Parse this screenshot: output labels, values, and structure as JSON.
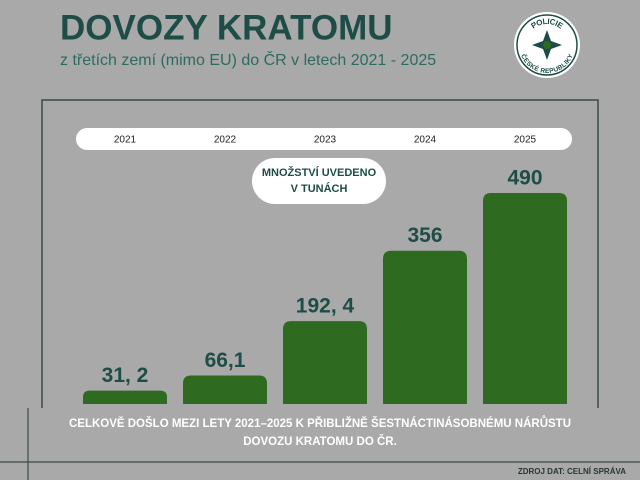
{
  "chart_data": {
    "type": "bar",
    "title": "DOVOZY KRATOMU",
    "subtitle": "z třetích zemí (mimo EU) do ČR v letech 2021 - 2025",
    "logo_text": [
      "POLICIE",
      "ČESKÉ REPUBLIKY"
    ],
    "annotation": [
      "MNOŽSTVÍ UVEDENO",
      "V TUNÁCH"
    ],
    "categories": [
      "2021",
      "2022",
      "2023",
      "2024",
      "2025"
    ],
    "values": [
      31.2,
      66.1,
      192.4,
      356,
      490
    ],
    "value_labels": [
      "31, 2",
      "66,1",
      "192, 4",
      "356",
      "490"
    ],
    "color": "#2e6a1f",
    "note": [
      "CELKOVĚ DOŠLO MEZI LETY 2021–2025 K PŘIBLIŽNĚ ŠESTNÁCTINÁSOBNÉMU NÁRŮSTU",
      "DOVOZU KRATOMU DO ČR."
    ],
    "source": "ZDROJ DAT: CELNÍ SPRÁVA"
  }
}
